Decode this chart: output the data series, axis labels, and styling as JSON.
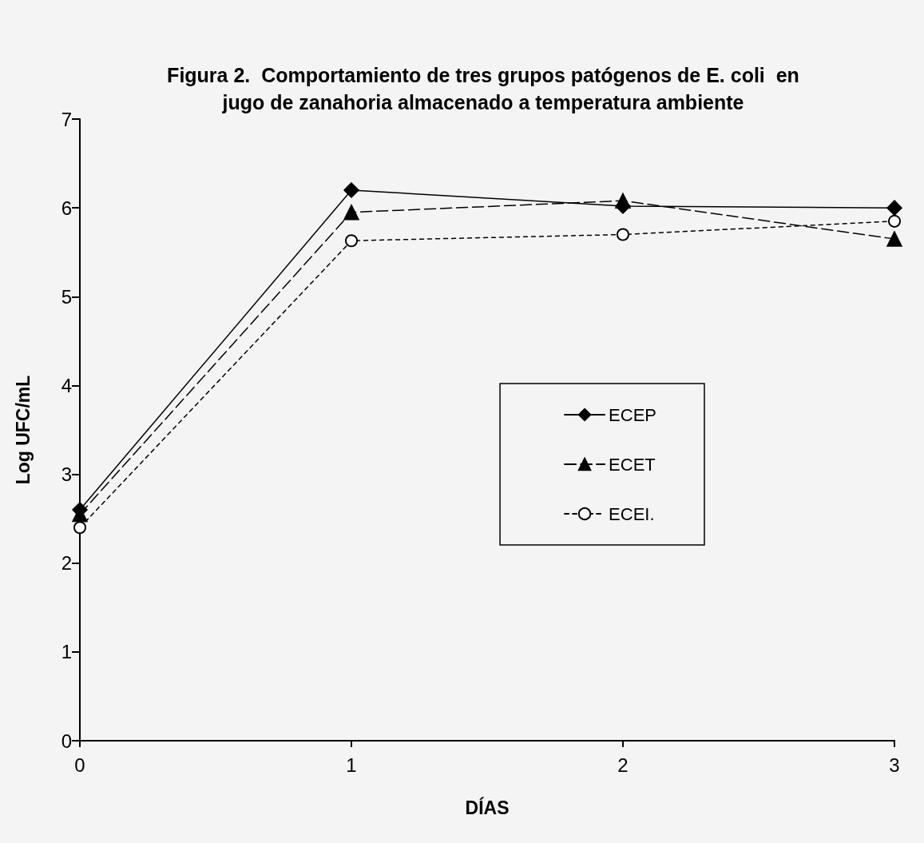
{
  "chart_data": {
    "type": "line",
    "title": "Figura 2.  Comportamiento de tres grupos patógenos de E. coli  en\njugo de zanahoria almacenado a temperatura ambiente",
    "xlabel": "DÍAS",
    "ylabel": "Log UFC/mL",
    "x": [
      0,
      1,
      2,
      3
    ],
    "xlim": [
      0,
      3
    ],
    "xticks": [
      0,
      1,
      2,
      3
    ],
    "ylim": [
      0,
      7
    ],
    "yticks": [
      0,
      1,
      2,
      3,
      4,
      5,
      6,
      7
    ],
    "grid": false,
    "legend": "right",
    "series": [
      {
        "name": "ECEP",
        "color": "#000000",
        "values": [
          2.6,
          6.2,
          6.02,
          6.0
        ],
        "marker": "diamond",
        "line_style": "solid"
      },
      {
        "name": "ECET",
        "color": "#000000",
        "values": [
          2.55,
          5.95,
          6.08,
          5.65
        ],
        "marker": "triangle",
        "line_style": "dashed"
      },
      {
        "name": "ECEI.",
        "color": "#000000",
        "values": [
          2.4,
          5.63,
          5.7,
          5.85
        ],
        "marker": "circle",
        "line_style": "dotted"
      }
    ]
  }
}
